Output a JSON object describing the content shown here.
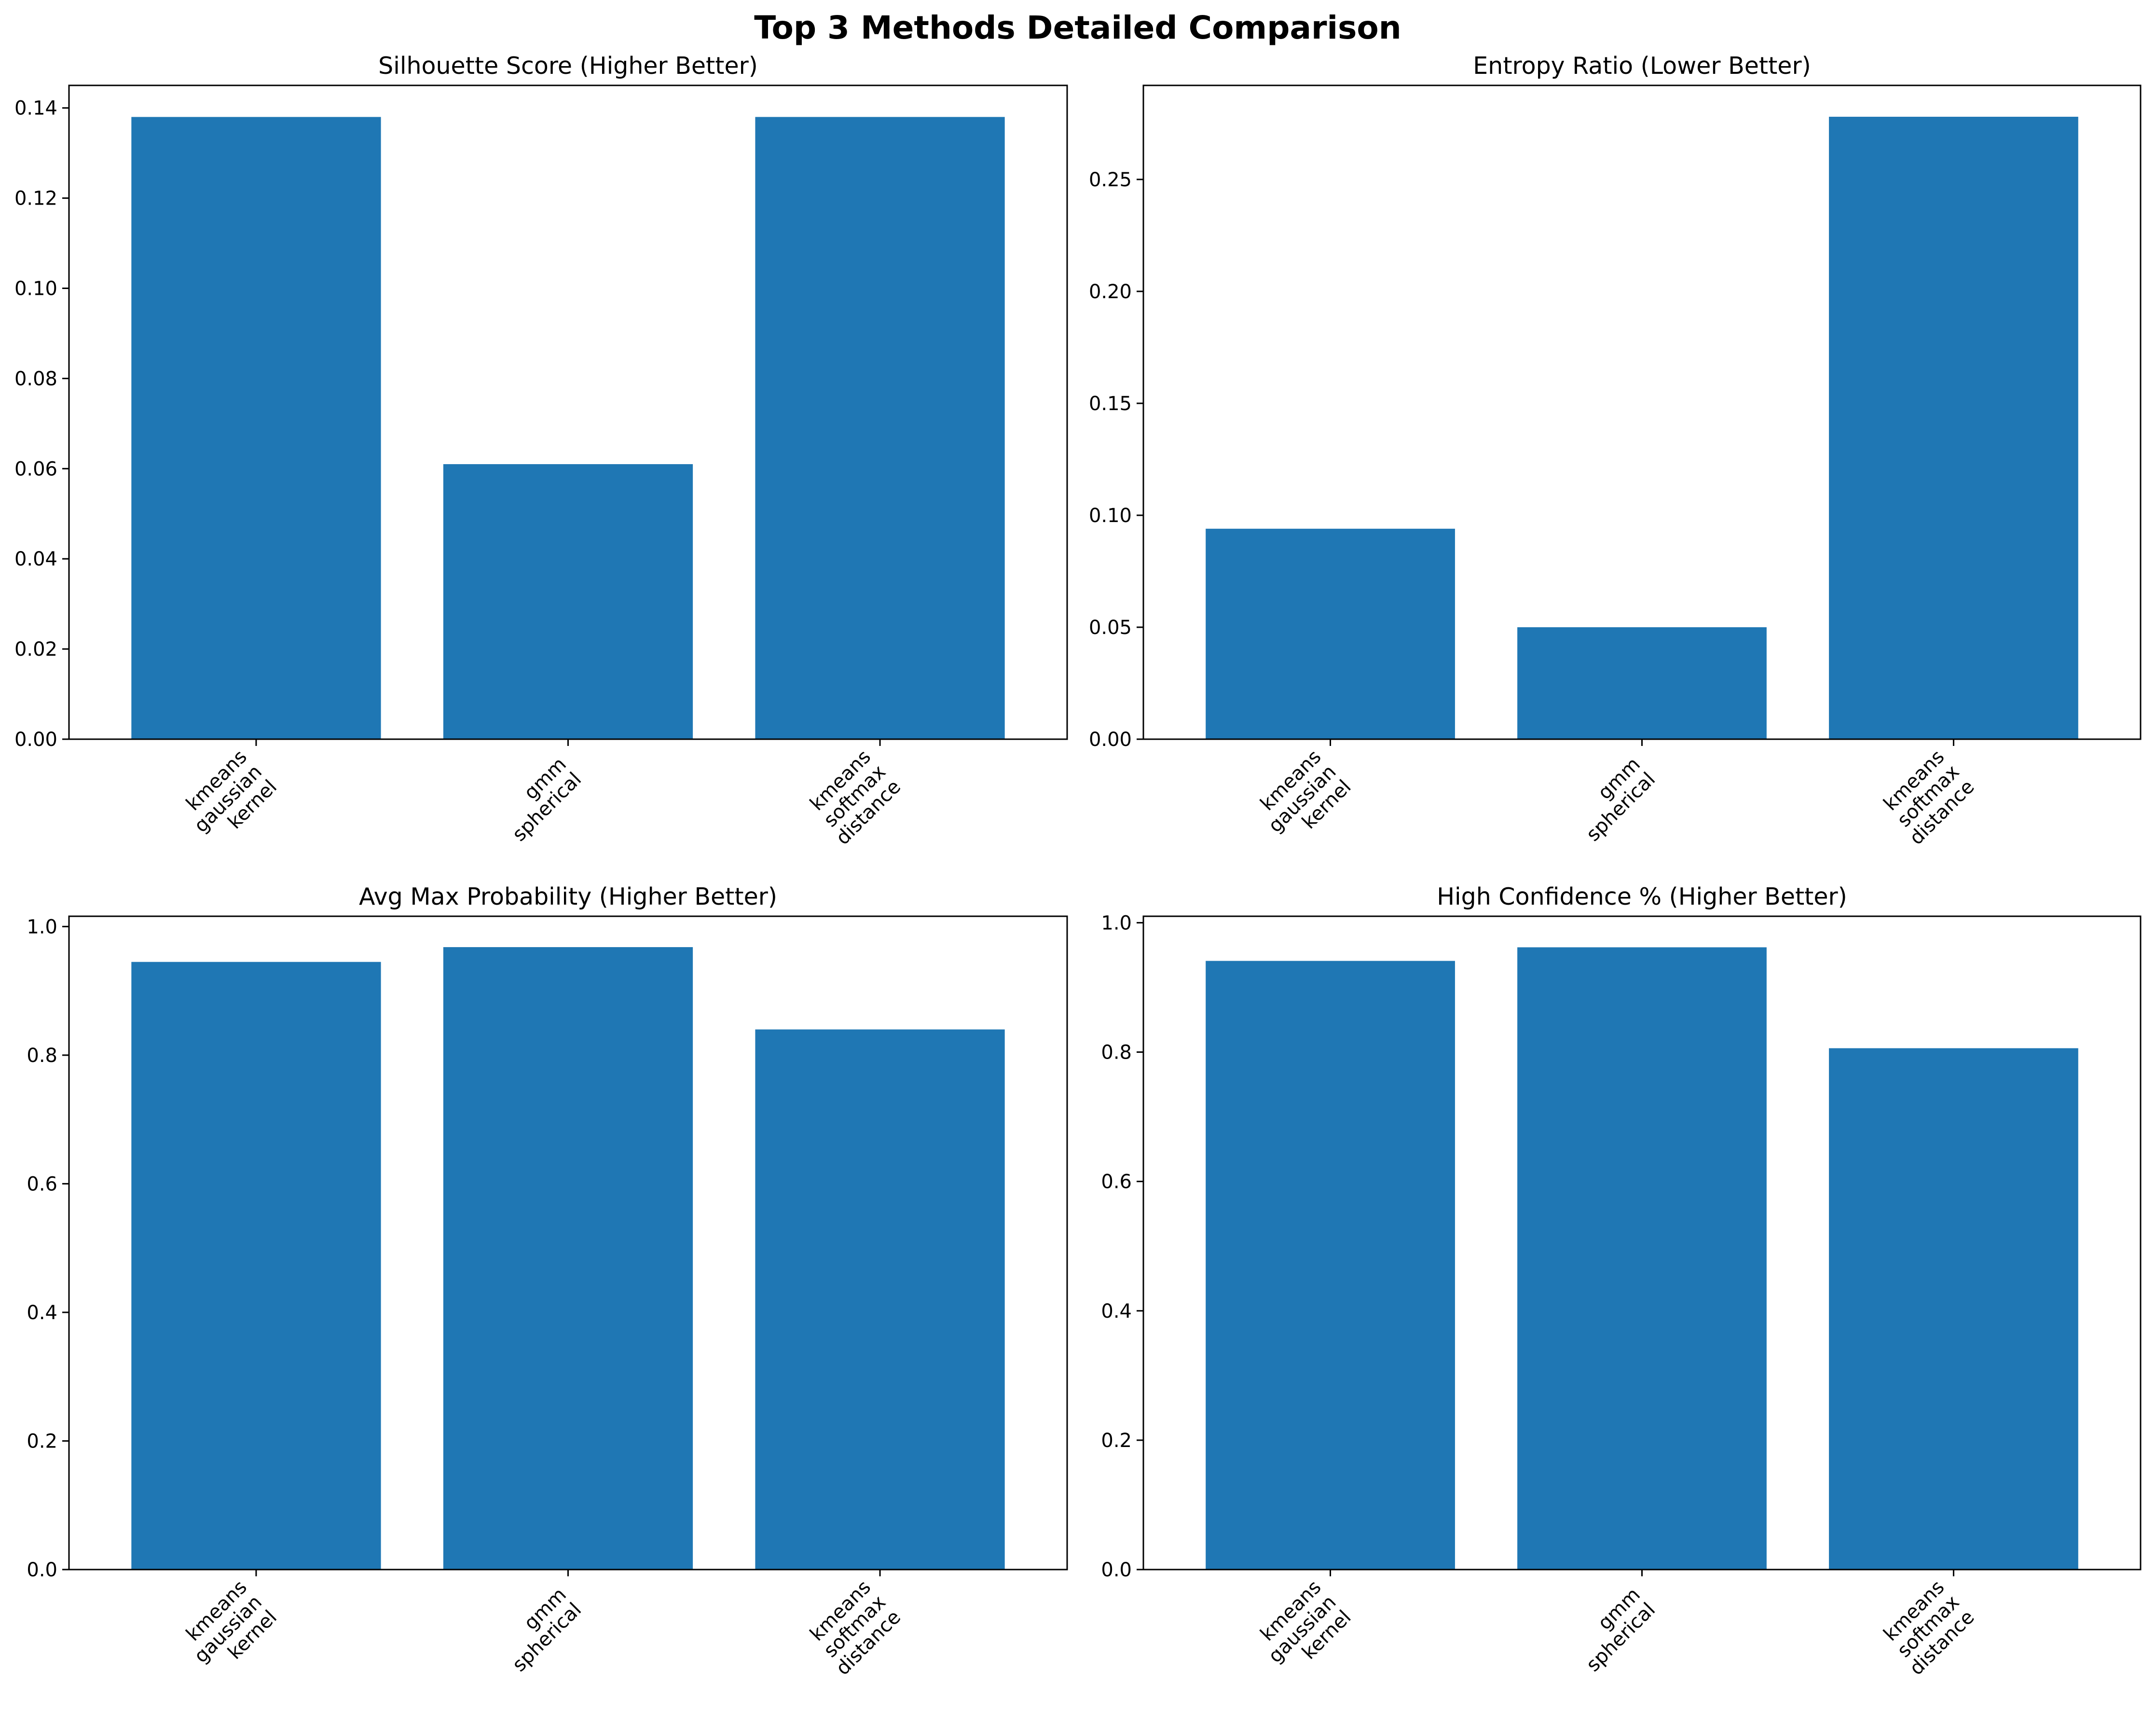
{
  "chart_data": {
    "suptitle": "Top 3 Methods Detailed Comparison",
    "charts": [
      {
        "type": "bar",
        "title": "Silhouette Score (Higher Better)",
        "categories": [
          [
            "kmeans",
            "gaussian",
            "kernel"
          ],
          [
            "gmm",
            "spherical"
          ],
          [
            "kmeans",
            "softmax",
            "distance"
          ]
        ],
        "values": [
          0.138,
          0.061,
          0.138
        ],
        "ylim": [
          0,
          0.145
        ],
        "yticks": [
          0.0,
          0.02,
          0.04,
          0.06,
          0.08,
          0.1,
          0.12,
          0.14
        ],
        "ytick_labels": [
          "0.00",
          "0.02",
          "0.04",
          "0.06",
          "0.08",
          "0.10",
          "0.12",
          "0.14"
        ],
        "xlabel": "",
        "ylabel": "",
        "grid": false,
        "bar_color": "#1f77b4"
      },
      {
        "type": "bar",
        "title": "Entropy Ratio (Lower Better)",
        "categories": [
          [
            "kmeans",
            "gaussian",
            "kernel"
          ],
          [
            "gmm",
            "spherical"
          ],
          [
            "kmeans",
            "softmax",
            "distance"
          ]
        ],
        "values": [
          0.094,
          0.05,
          0.278
        ],
        "ylim": [
          0,
          0.292
        ],
        "yticks": [
          0.0,
          0.05,
          0.1,
          0.15,
          0.2,
          0.25
        ],
        "ytick_labels": [
          "0.00",
          "0.05",
          "0.10",
          "0.15",
          "0.20",
          "0.25"
        ],
        "xlabel": "",
        "ylabel": "",
        "grid": false,
        "bar_color": "#1f77b4"
      },
      {
        "type": "bar",
        "title": "Avg Max Probability (Higher Better)",
        "categories": [
          [
            "kmeans",
            "gaussian",
            "kernel"
          ],
          [
            "gmm",
            "spherical"
          ],
          [
            "kmeans",
            "softmax",
            "distance"
          ]
        ],
        "values": [
          0.945,
          0.968,
          0.84
        ],
        "ylim": [
          0,
          1.016
        ],
        "yticks": [
          0.0,
          0.2,
          0.4,
          0.6,
          0.8,
          1.0
        ],
        "ytick_labels": [
          "0.0",
          "0.2",
          "0.4",
          "0.6",
          "0.8",
          "1.0"
        ],
        "xlabel": "",
        "ylabel": "",
        "grid": false,
        "bar_color": "#1f77b4"
      },
      {
        "type": "bar",
        "title": "High Confidence % (Higher Better)",
        "categories": [
          [
            "kmeans",
            "gaussian",
            "kernel"
          ],
          [
            "gmm",
            "spherical"
          ],
          [
            "kmeans",
            "softmax",
            "distance"
          ]
        ],
        "values": [
          0.941,
          0.962,
          0.806
        ],
        "ylim": [
          0,
          1.01
        ],
        "yticks": [
          0.0,
          0.2,
          0.4,
          0.6,
          0.8,
          1.0
        ],
        "ytick_labels": [
          "0.0",
          "0.2",
          "0.4",
          "0.6",
          "0.8",
          "1.0"
        ],
        "xlabel": "",
        "ylabel": "",
        "grid": false,
        "bar_color": "#1f77b4"
      }
    ]
  }
}
